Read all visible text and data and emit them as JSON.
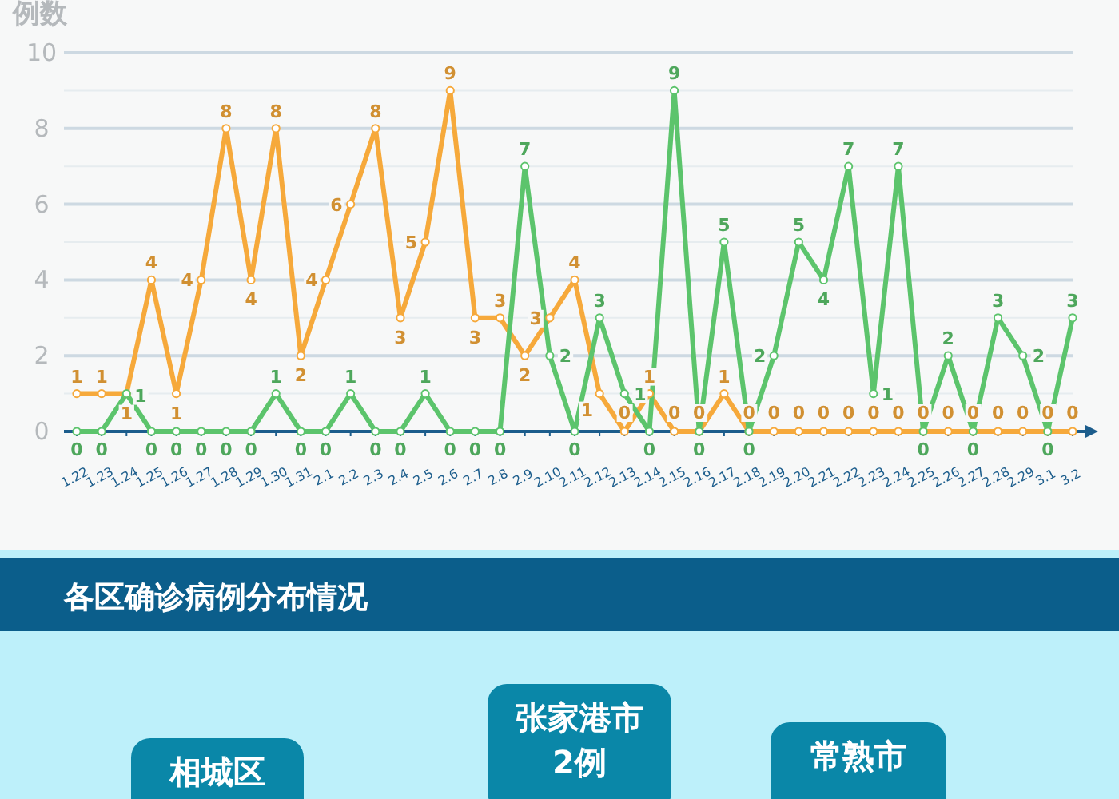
{
  "chart_data": {
    "type": "line",
    "ylabel": "例数",
    "categories": [
      "1.22",
      "1.23",
      "1.24",
      "1.25",
      "1.26",
      "1.27",
      "1.28",
      "1.29",
      "1.30",
      "1.31",
      "2.1",
      "2.2",
      "2.3",
      "2.4",
      "2.5",
      "2.6",
      "2.7",
      "2.8",
      "2.9",
      "2.10",
      "2.11",
      "2.12",
      "2.13",
      "2.14",
      "2.15",
      "2.16",
      "2.17",
      "2.18",
      "2.19",
      "2.20",
      "2.21",
      "2.22",
      "2.23",
      "2.24",
      "2.25",
      "2.26",
      "2.27",
      "2.28",
      "2.29",
      "3.1",
      "3.2"
    ],
    "series": [
      {
        "color": "#f6a93b",
        "values": [
          1,
          1,
          1,
          4,
          1,
          4,
          8,
          4,
          8,
          2,
          4,
          6,
          8,
          3,
          5,
          9,
          3,
          3,
          2,
          3,
          4,
          1,
          0,
          1,
          0,
          0,
          1,
          0,
          0,
          0,
          0,
          0,
          0,
          0,
          0,
          0,
          0,
          0,
          0,
          0,
          0
        ]
      },
      {
        "color": "#5cc46c",
        "values": [
          0,
          0,
          1,
          0,
          0,
          0,
          0,
          0,
          1,
          0,
          0,
          1,
          0,
          0,
          1,
          0,
          0,
          0,
          7,
          2,
          0,
          3,
          1,
          0,
          9,
          0,
          5,
          0,
          2,
          5,
          4,
          7,
          1,
          7,
          0,
          2,
          0,
          3,
          2,
          0,
          3
        ]
      }
    ],
    "ylim": [
      0,
      10
    ],
    "yticks": [
      0,
      2,
      4,
      6,
      8,
      10
    ],
    "grid": "y",
    "marker": "circle",
    "line_style": "solid",
    "data_labels": true,
    "annotations": [
      "各区确诊病例分布情况",
      "相城区",
      "张家港市",
      "2例",
      "常熟市"
    ]
  }
}
